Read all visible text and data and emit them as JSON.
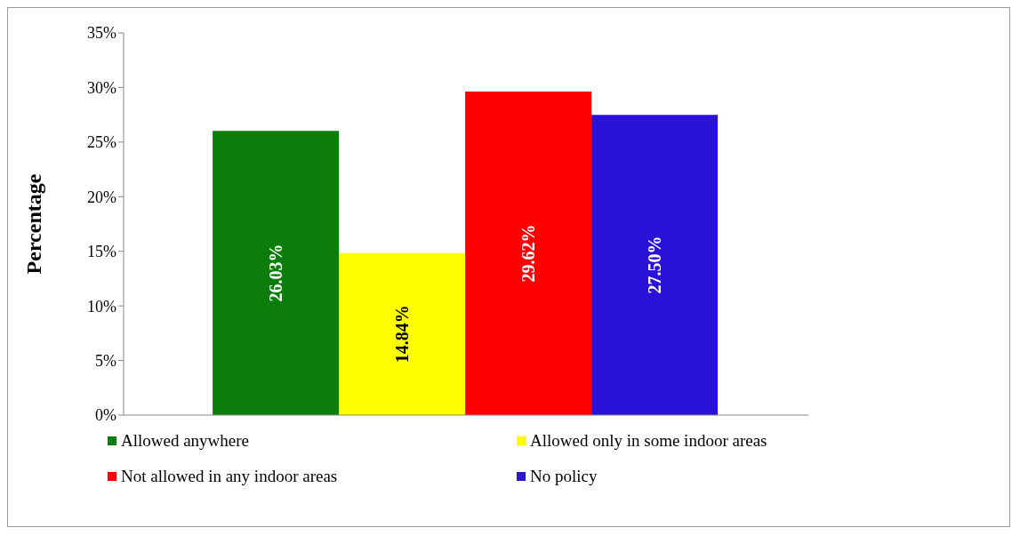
{
  "chart_data": {
    "type": "bar",
    "ylabel": "Percentage",
    "categories": [
      null
    ],
    "series": [
      {
        "name": "Allowed anywhere",
        "color": "#0b7d0b",
        "values": [
          26.03
        ],
        "value_labels": [
          "26.03%"
        ]
      },
      {
        "name": "Allowed only in some indoor areas",
        "color": "#ffff00",
        "values": [
          14.84
        ],
        "value_labels": [
          "14.84%"
        ]
      },
      {
        "name": "Not allowed in any indoor areas",
        "color": "#ff0000",
        "values": [
          29.62
        ],
        "value_labels": [
          "29.62%"
        ]
      },
      {
        "name": "No policy",
        "color": "#2b12d9",
        "values": [
          27.5
        ],
        "value_labels": [
          "27.50%"
        ]
      }
    ],
    "ylim": [
      0,
      35
    ],
    "yticks": [
      {
        "value": 0,
        "label": "0%"
      },
      {
        "value": 5,
        "label": "5%"
      },
      {
        "value": 10,
        "label": "10%"
      },
      {
        "value": 15,
        "label": "15%"
      },
      {
        "value": 20,
        "label": "20%"
      },
      {
        "value": 25,
        "label": "25%"
      },
      {
        "value": 30,
        "label": "30%"
      },
      {
        "value": 35,
        "label": "35%"
      }
    ],
    "grid": false,
    "legend": "bottom"
  }
}
